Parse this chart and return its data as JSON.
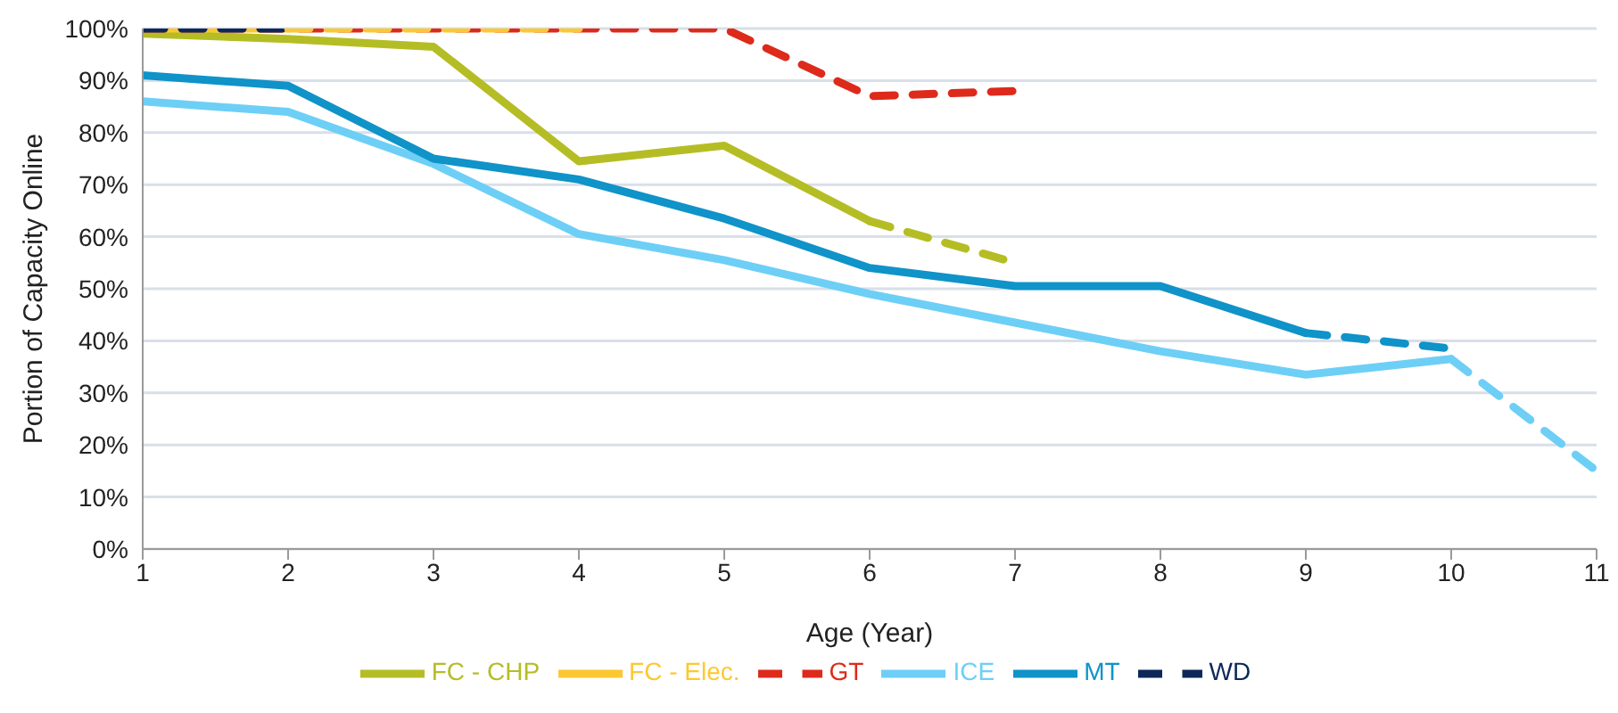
{
  "chart_data": {
    "type": "line",
    "xlabel": "Age (Year)",
    "ylabel": "Portion of Capacity Online",
    "xlim": [
      1,
      11
    ],
    "xticks": [
      1,
      2,
      3,
      4,
      5,
      6,
      7,
      8,
      9,
      10,
      11
    ],
    "ylim": [
      0,
      100
    ],
    "yticks": [
      {
        "value": 0,
        "label": "0%"
      },
      {
        "value": 10,
        "label": "10%"
      },
      {
        "value": 20,
        "label": "20%"
      },
      {
        "value": 30,
        "label": "30%"
      },
      {
        "value": 40,
        "label": "40%"
      },
      {
        "value": 50,
        "label": "50%"
      },
      {
        "value": 60,
        "label": "60%"
      },
      {
        "value": 70,
        "label": "70%"
      },
      {
        "value": 80,
        "label": "80%"
      },
      {
        "value": 90,
        "label": "90%"
      },
      {
        "value": 100,
        "label": "100%"
      }
    ],
    "grid": "y",
    "legend": "bottom",
    "marker": "none",
    "series": [
      {
        "name": "FC - CHP",
        "color": "#b5bd25",
        "line_style": "solid",
        "x": [
          1,
          2,
          3,
          4,
          5,
          6
        ],
        "values": [
          99,
          98,
          96.5,
          74.5,
          77.5,
          63
        ]
      },
      {
        "name": "FC - Elec.",
        "color": "#fdc82f",
        "line_style": "solid",
        "x": [
          1,
          2
        ],
        "values": [
          100,
          100
        ]
      },
      {
        "name": "GT",
        "color": "#dd2a1b",
        "line_style": "dashed",
        "x": [
          1,
          2,
          3,
          4,
          5,
          6,
          7
        ],
        "values": [
          100,
          100,
          100,
          100,
          100,
          87,
          88
        ]
      },
      {
        "name": "ICE",
        "color": "#6dcff6",
        "line_style": "solid",
        "x": [
          1,
          2,
          3,
          4,
          5,
          6,
          7,
          8,
          9,
          10
        ],
        "values": [
          86,
          84,
          74,
          60.5,
          55.5,
          49,
          43.5,
          38,
          33.5,
          36.5
        ]
      },
      {
        "name": "MT",
        "color": "#0f93c8",
        "line_style": "solid",
        "x": [
          1,
          2,
          3,
          4,
          5,
          6,
          7,
          8,
          9
        ],
        "values": [
          91,
          89,
          75,
          71,
          63.5,
          54,
          50.5,
          50.5,
          41.5
        ]
      },
      {
        "name": "WD",
        "color": "#0d2759",
        "line_style": "dashed",
        "x": [
          1,
          2
        ],
        "values": [
          100,
          100
        ]
      },
      {
        "color": "#b5bd25",
        "line_style": "dashed",
        "x": [
          6,
          7
        ],
        "values": [
          63,
          55
        ]
      },
      {
        "color": "#fdc82f",
        "line_style": "dashed",
        "x": [
          2,
          4
        ],
        "values": [
          100,
          100
        ]
      },
      {
        "color": "#6dcff6",
        "line_style": "dashed",
        "x": [
          10,
          11
        ],
        "values": [
          36.5,
          15
        ]
      },
      {
        "color": "#0f93c8",
        "line_style": "dashed",
        "x": [
          9,
          10
        ],
        "values": [
          41.5,
          38.5
        ]
      }
    ]
  }
}
